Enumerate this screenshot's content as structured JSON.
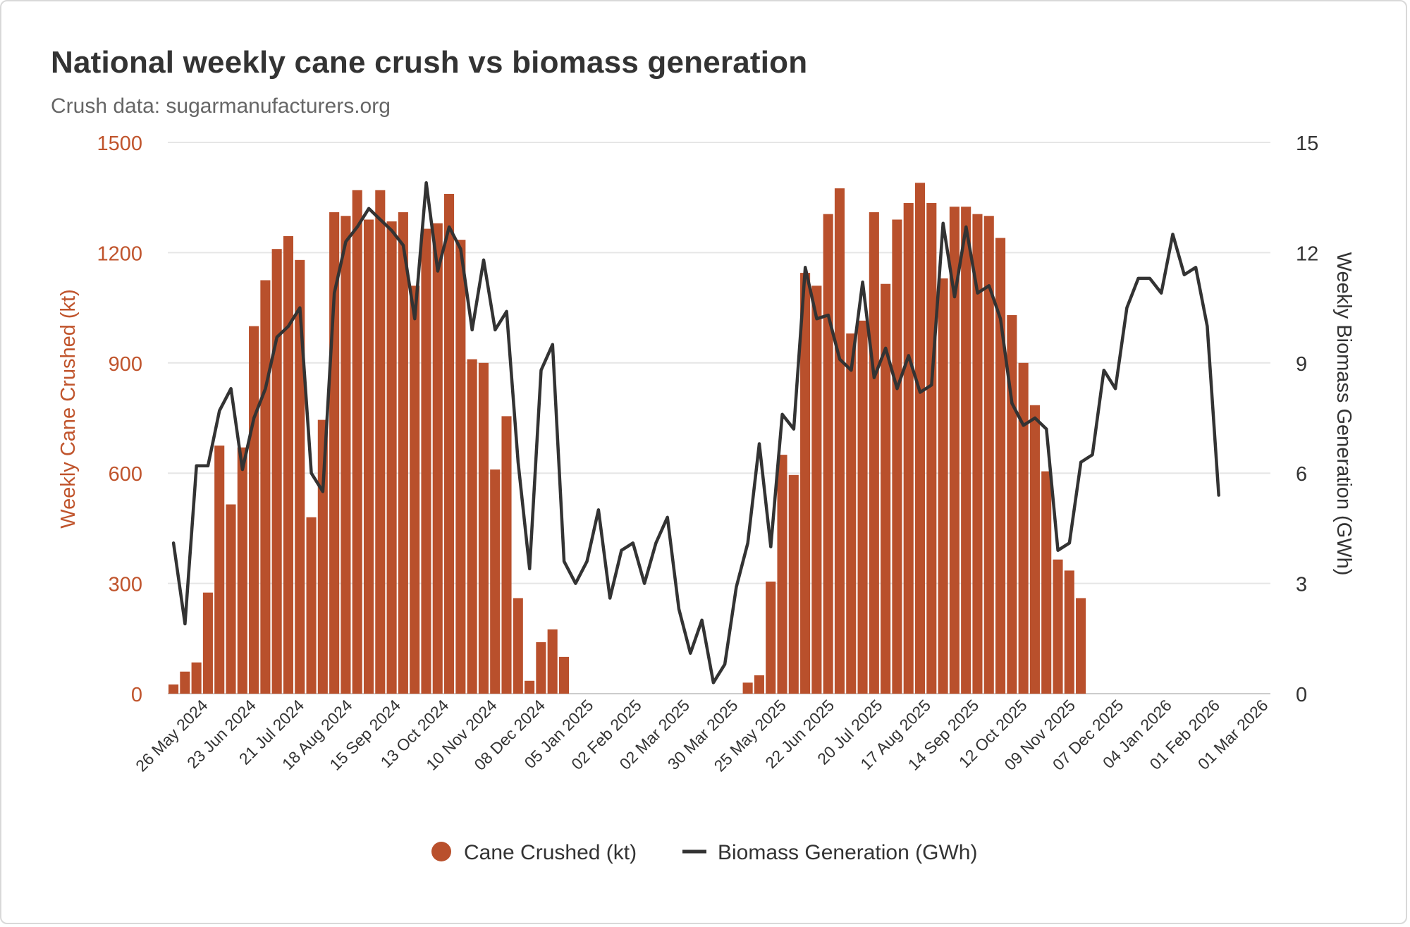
{
  "chart_data": {
    "type": "bar+line",
    "title": "National weekly cane crush vs biomass generation",
    "subtitle": "Crush data: sugarmanufacturers.org",
    "ylabel_left": "Weekly Cane Crushed (kt)",
    "ylabel_right": "Weekly Biomass Generation (GWh)",
    "ylim_left": [
      0,
      1500
    ],
    "ylim_right": [
      0,
      15
    ],
    "yticks_left": [
      "0",
      "300",
      "600",
      "900",
      "1200",
      "1500"
    ],
    "yticks_right": [
      "0",
      "3",
      "6",
      "9",
      "12",
      "15"
    ],
    "xtick_labels": [
      "26 May 2024",
      "23 Jun 2024",
      "21 Jul 2024",
      "18 Aug 2024",
      "15 Sep 2024",
      "13 Oct 2024",
      "10 Nov 2024",
      "08 Dec 2024",
      "05 Jan 2025",
      "02 Feb 2025",
      "02 Mar 2025",
      "30 Mar 2025",
      "25 May 2025",
      "22 Jun 2025",
      "20 Jul 2025",
      "17 Aug 2025",
      "14 Sep 2025",
      "12 Oct 2025",
      "09 Nov 2025",
      "07 Dec 2025",
      "04 Jan 2026",
      "01 Feb 2026",
      "01 Mar 2026"
    ],
    "legend": [
      "Cane Crushed (kt)",
      "Biomass Generation (GWh)"
    ],
    "colors": {
      "bar": "#b9502c",
      "line": "#333333",
      "left_axis": "#c0542c",
      "grid": "#e6e6e6"
    },
    "series": [
      {
        "name": "Cane Crushed (kt)",
        "type": "bar",
        "axis": "left",
        "values": [
          25,
          60,
          85,
          275,
          675,
          515,
          670,
          1000,
          1125,
          1210,
          1245,
          1180,
          480,
          745,
          1310,
          1300,
          1370,
          1290,
          1370,
          1285,
          1310,
          1110,
          1265,
          1280,
          1360,
          1235,
          910,
          900,
          610,
          755,
          260,
          35,
          140,
          175,
          100,
          0,
          0,
          0,
          0,
          0,
          0,
          0,
          0,
          0,
          0,
          0,
          0,
          0,
          0,
          0,
          30,
          50,
          305,
          650,
          595,
          1145,
          1110,
          1305,
          1375,
          980,
          1015,
          1310,
          1115,
          1290,
          1335,
          1390,
          1335,
          1130,
          1325,
          1325,
          1305,
          1300,
          1240,
          1030,
          900,
          785,
          605,
          365,
          335,
          260,
          0,
          0,
          0,
          0,
          0,
          0,
          0,
          0,
          0,
          0,
          0,
          0,
          0,
          0,
          0,
          0
        ]
      },
      {
        "name": "Biomass Generation (GWh)",
        "type": "line",
        "axis": "right",
        "values": [
          4.1,
          1.9,
          6.2,
          6.2,
          7.7,
          8.3,
          6.1,
          7.5,
          8.3,
          9.7,
          10.0,
          10.5,
          6.0,
          5.5,
          10.9,
          12.3,
          12.7,
          13.2,
          12.9,
          12.6,
          12.2,
          10.2,
          13.9,
          11.5,
          12.7,
          12.1,
          9.9,
          11.8,
          9.9,
          10.4,
          6.3,
          3.4,
          8.8,
          9.5,
          3.6,
          3.0,
          3.6,
          5.0,
          2.6,
          3.9,
          4.1,
          3.0,
          4.1,
          4.8,
          2.3,
          1.1,
          2.0,
          0.3,
          0.8,
          2.9,
          4.1,
          6.8,
          4.0,
          7.6,
          7.2,
          11.6,
          10.2,
          10.3,
          9.1,
          8.8,
          11.2,
          8.6,
          9.4,
          8.3,
          9.2,
          8.2,
          8.4,
          12.8,
          10.8,
          12.7,
          10.9,
          11.1,
          10.2,
          7.9,
          7.3,
          7.5,
          7.2,
          3.9,
          4.1,
          6.3,
          6.5,
          8.8,
          8.3,
          10.5,
          11.3,
          11.3,
          10.9,
          12.5,
          11.4,
          11.6,
          10.0,
          5.4
        ]
      }
    ]
  }
}
